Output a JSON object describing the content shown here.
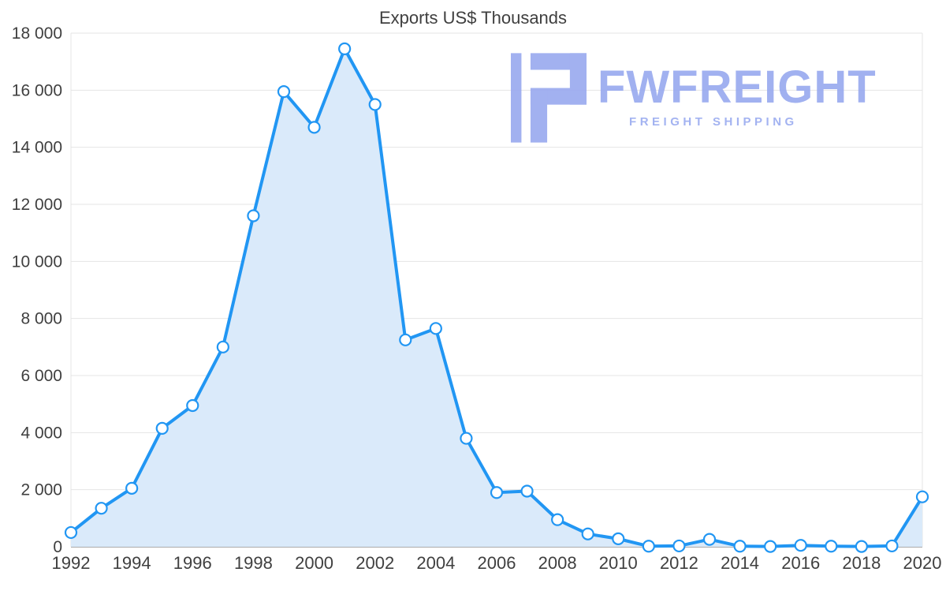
{
  "title": "Exports US$ Thousands",
  "watermark": {
    "brand": "FWFREIGHT",
    "tagline": "FREIGHT SHIPPING",
    "color": "#97a9ef"
  },
  "chart_data": {
    "type": "area",
    "title": "Exports US$ Thousands",
    "xlabel": "",
    "ylabel": "",
    "x": [
      1992,
      1993,
      1994,
      1995,
      1996,
      1997,
      1998,
      1999,
      2000,
      2001,
      2002,
      2003,
      2004,
      2005,
      2006,
      2007,
      2008,
      2009,
      2010,
      2011,
      2012,
      2013,
      2014,
      2015,
      2016,
      2017,
      2018,
      2019,
      2020
    ],
    "values": [
      500,
      1350,
      2050,
      4150,
      4950,
      7000,
      11600,
      15950,
      14700,
      17450,
      15500,
      7250,
      7650,
      3800,
      1900,
      1950,
      950,
      450,
      280,
      20,
      30,
      260,
      20,
      10,
      50,
      20,
      10,
      30,
      1750
    ],
    "ylim": [
      0,
      18000
    ],
    "yticks": [
      {
        "value": 0,
        "label": "0"
      },
      {
        "value": 2000,
        "label": "2 000"
      },
      {
        "value": 4000,
        "label": "4 000"
      },
      {
        "value": 6000,
        "label": "6 000"
      },
      {
        "value": 8000,
        "label": "8 000"
      },
      {
        "value": 10000,
        "label": "10 000"
      },
      {
        "value": 12000,
        "label": "12 000"
      },
      {
        "value": 14000,
        "label": "14 000"
      },
      {
        "value": 16000,
        "label": "16 000"
      },
      {
        "value": 18000,
        "label": "18 000"
      }
    ],
    "xtick_labels": [
      "1992",
      "1994",
      "1996",
      "1998",
      "2000",
      "2002",
      "2004",
      "2006",
      "2008",
      "2010",
      "2012",
      "2014",
      "2016",
      "2018",
      "2020"
    ],
    "grid": true,
    "legend": "none",
    "line_color": "#2196f3",
    "fill_color": "#daeafa",
    "marker_fill": "#ffffff",
    "axis_text_color": "#3f3f3f",
    "grid_color": "#e4e4e4",
    "baseline_color": "#8f8f8f"
  }
}
